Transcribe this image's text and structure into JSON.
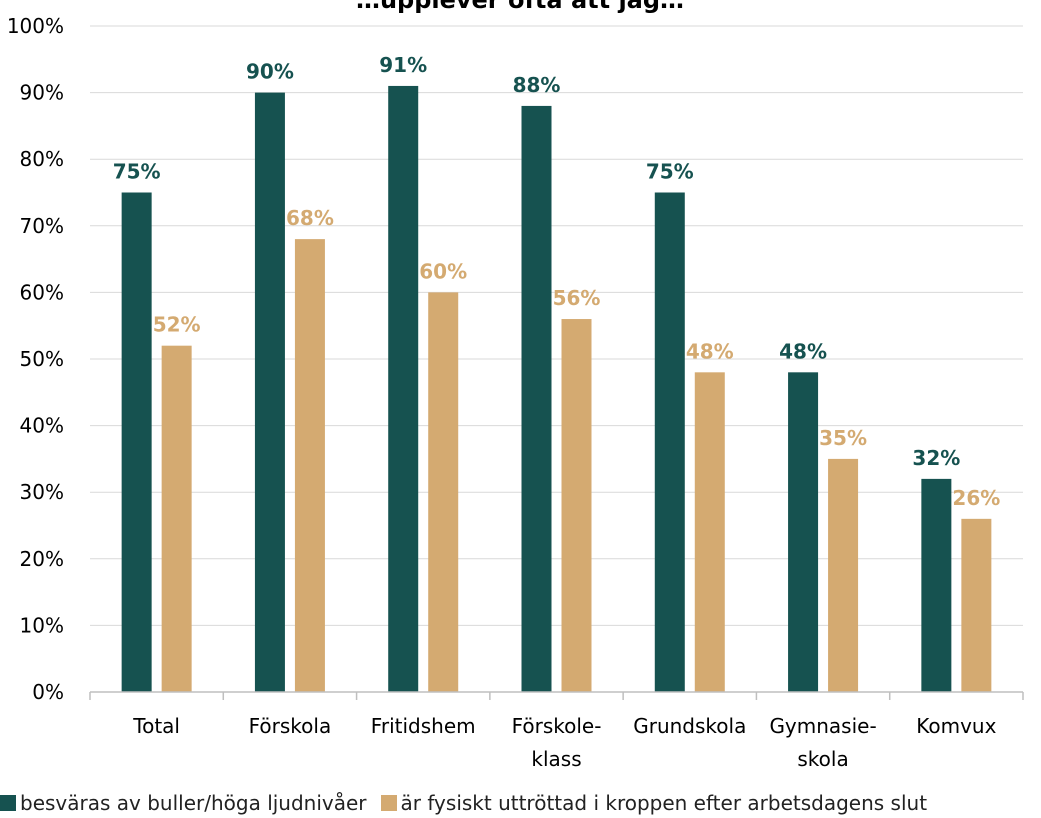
{
  "chart_data": {
    "type": "bar",
    "title": "…upplever ofta att jag…",
    "categories": [
      [
        "Total"
      ],
      [
        "Förskola"
      ],
      [
        "Fritidshem"
      ],
      [
        "Förskole-",
        "klass"
      ],
      [
        "Grundskola"
      ],
      [
        "Gymnasie-",
        "skola"
      ],
      [
        "Komvux"
      ]
    ],
    "series": [
      {
        "name": "besväras av buller/höga ljudnivåer",
        "color": "#165250",
        "values": [
          75,
          90,
          91,
          88,
          75,
          48,
          32
        ],
        "labels": [
          "75%",
          "90%",
          "91%",
          "88%",
          "75%",
          "48%",
          "32%"
        ]
      },
      {
        "name": "är fysiskt uttröttad i kroppen efter arbetsdagens slut",
        "color": "#D4AA71",
        "values": [
          52,
          68,
          60,
          56,
          48,
          35,
          26
        ],
        "labels": [
          "52%",
          "68%",
          "60%",
          "56%",
          "48%",
          "35%",
          "26%"
        ]
      }
    ],
    "ylim": [
      0,
      100
    ],
    "yticks": [
      "0%",
      "10%",
      "20%",
      "30%",
      "40%",
      "50%",
      "60%",
      "70%",
      "80%",
      "90%",
      "100%"
    ],
    "grid": true,
    "legend_position": "bottom"
  }
}
